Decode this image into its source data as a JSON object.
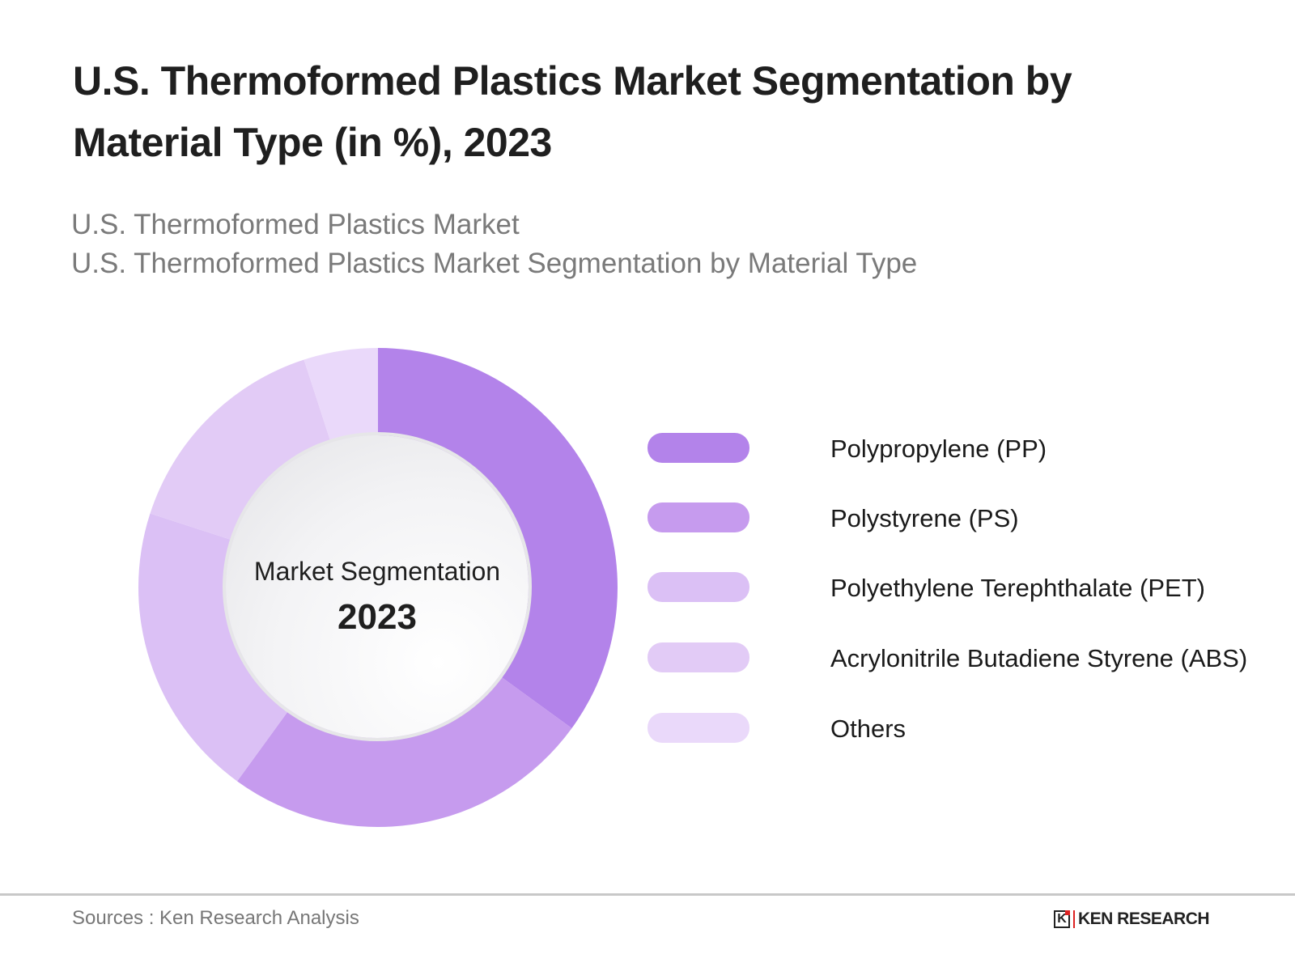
{
  "header": {
    "title": "U.S. Thermoformed Plastics Market Segmentation by Material Type (in %), 2023",
    "subtitle_line1": "U.S. Thermoformed Plastics Market",
    "subtitle_line2": "U.S. Thermoformed Plastics Market Segmentation by Material Type"
  },
  "center": {
    "label": "Market Segmentation",
    "year": "2023"
  },
  "legend": [
    {
      "label": "Polypropylene (PP)",
      "color": "#b383ea"
    },
    {
      "label": "Polystyrene (PS)",
      "color": "#c69bee"
    },
    {
      "label": "Polyethylene Terephthalate (PET)",
      "color": "#dbc0f5"
    },
    {
      "label": "Acrylonitrile Butadiene Styrene (ABS)",
      "color": "#e2cbf6"
    },
    {
      "label": "Others",
      "color": "#ead9fa"
    }
  ],
  "footer": {
    "source": "Sources : Ken Research Analysis",
    "logo_mark": "K",
    "logo_text": "KEN RESEARCH"
  },
  "chart_data": {
    "type": "pie",
    "subtype": "donut",
    "title": "U.S. Thermoformed Plastics Market Segmentation by Material Type (in %), 2023",
    "categories": [
      "Polypropylene (PP)",
      "Polystyrene (PS)",
      "Polyethylene Terephthalate (PET)",
      "Acrylonitrile Butadiene Styrene (ABS)",
      "Others"
    ],
    "values": [
      35,
      25,
      20,
      15,
      5
    ],
    "colors": [
      "#b383ea",
      "#c69bee",
      "#dbc0f5",
      "#e2cbf6",
      "#ead9fa"
    ],
    "center_text": [
      "Market Segmentation",
      "2023"
    ],
    "legend_position": "right",
    "start_angle": "12 o'clock, clockwise"
  }
}
